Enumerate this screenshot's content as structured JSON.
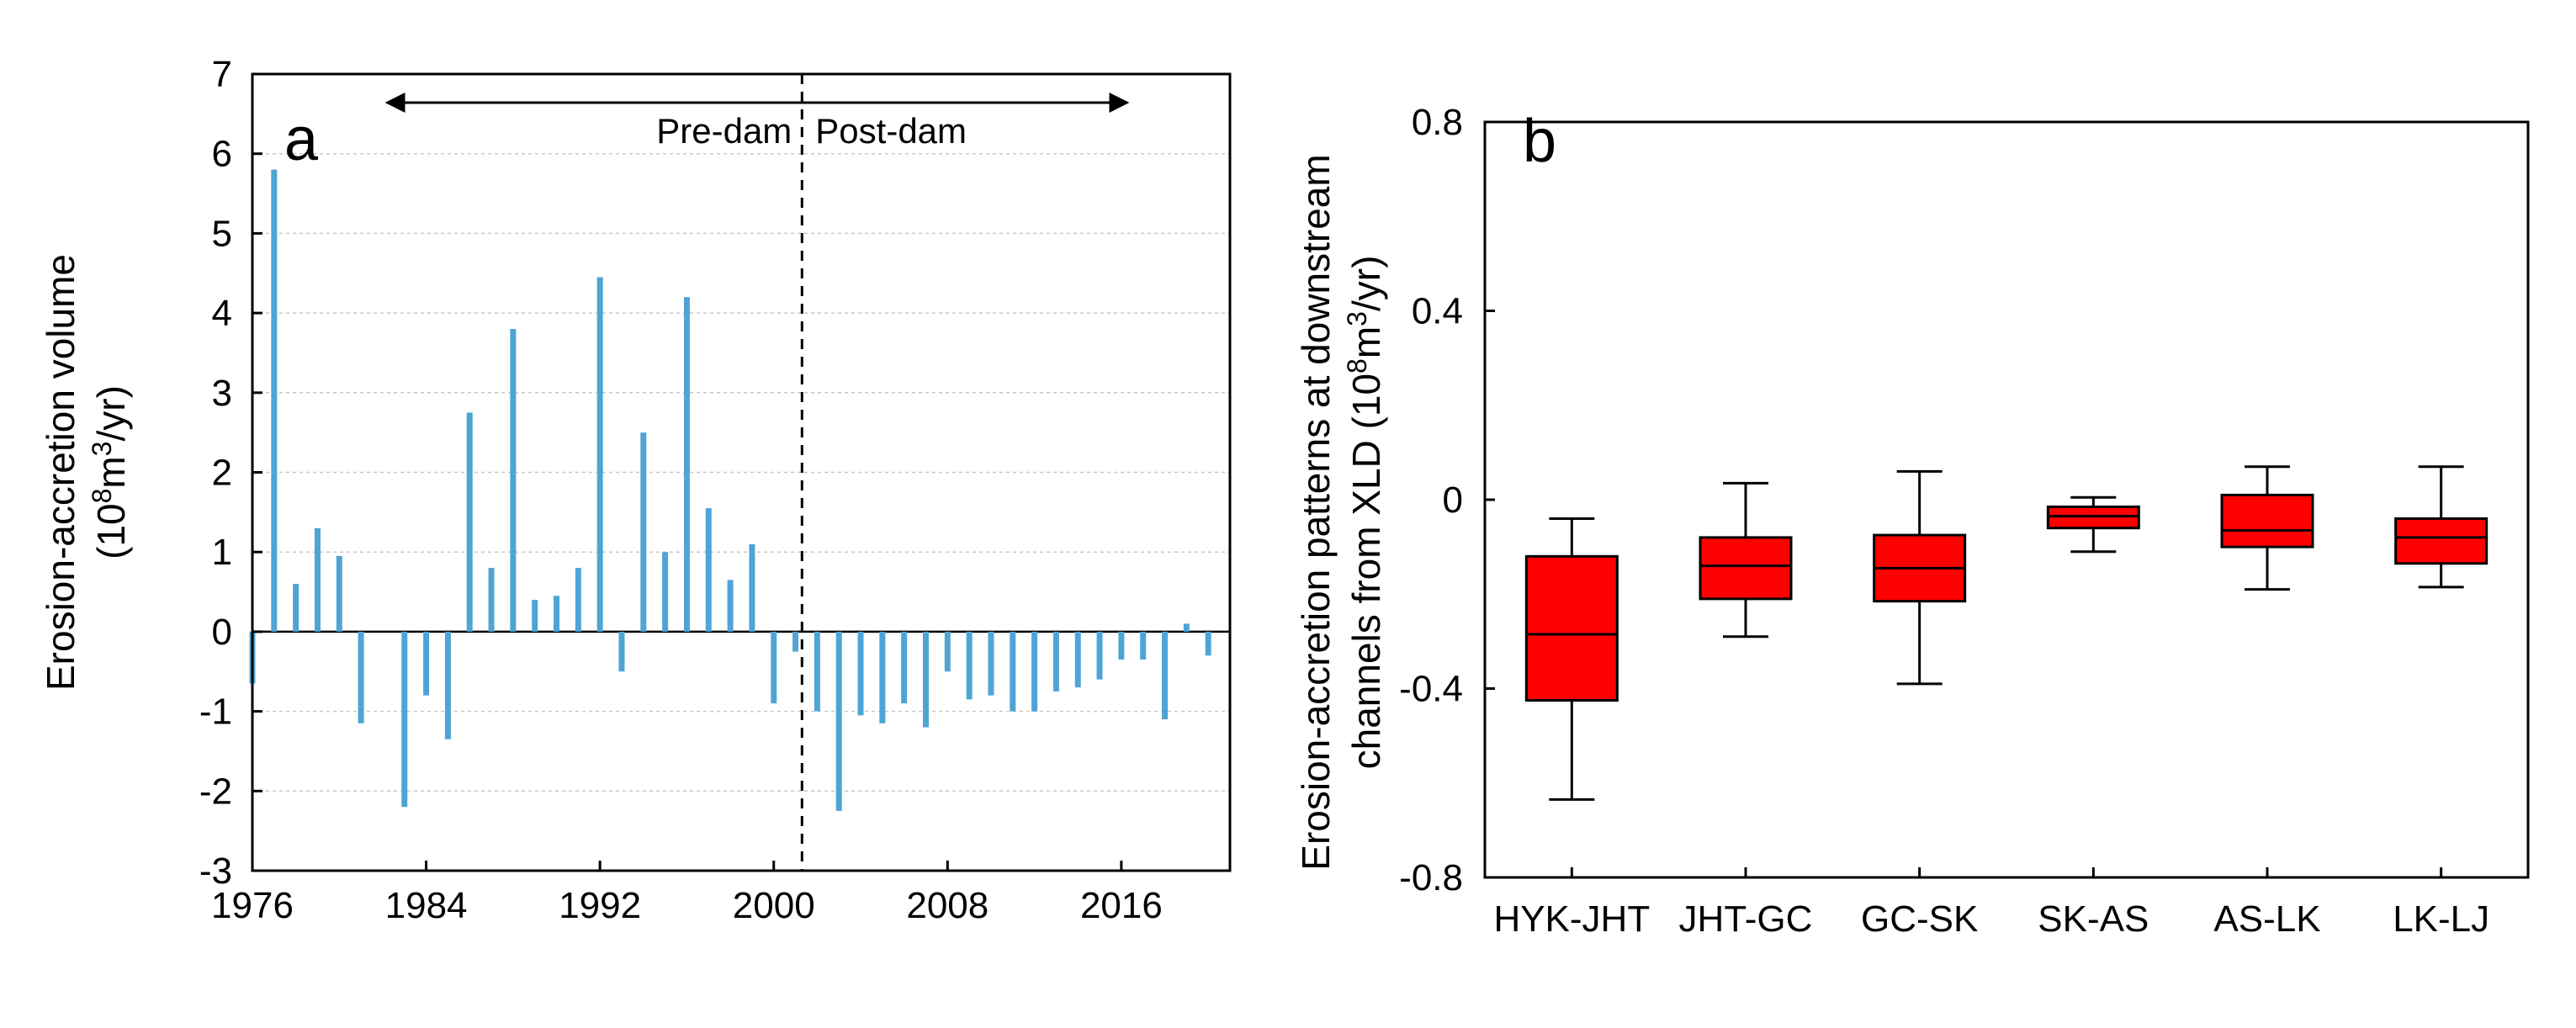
{
  "chart_data": [
    {
      "type": "bar",
      "panel_label": "a",
      "ylabel_line1": "Erosion-accretion volume",
      "ylabel_line2_pre": "(10",
      "ylabel_line2_sup1": "8",
      "ylabel_line2_mid": "m",
      "ylabel_line2_sup2": "3",
      "ylabel_line2_post": "/yr)",
      "ylim": [
        -3,
        7
      ],
      "yticks": [
        "7",
        "6",
        "5",
        "4",
        "3",
        "2",
        "1",
        "0",
        "-1",
        "-2",
        "-3"
      ],
      "ytick_values": [
        7,
        6,
        5,
        4,
        3,
        2,
        1,
        0,
        -1,
        -2,
        -3
      ],
      "xlim": [
        1976,
        2021
      ],
      "xticks": [
        "1976",
        "1984",
        "1992",
        "2000",
        "2008",
        "2016"
      ],
      "xtick_values": [
        1976,
        1984,
        1992,
        2000,
        2008,
        2016
      ],
      "divider_year": 2001.3,
      "pre_label": "Pre-dam",
      "post_label": "Post-dam",
      "bar_color": "#4fa4d6",
      "grid": true,
      "x": [
        1976,
        1977,
        1978,
        1979,
        1980,
        1981,
        1982,
        1983,
        1984,
        1985,
        1986,
        1987,
        1988,
        1989,
        1990,
        1991,
        1992,
        1993,
        1994,
        1995,
        1996,
        1997,
        1998,
        1999,
        2000,
        2001,
        2002,
        2003,
        2004,
        2005,
        2006,
        2007,
        2008,
        2009,
        2010,
        2011,
        2012,
        2013,
        2014,
        2015,
        2016,
        2017,
        2018,
        2019,
        2020,
        2021
      ],
      "values": [
        -0.65,
        5.8,
        0.6,
        1.3,
        0.95,
        -1.15,
        0,
        -2.2,
        -0.8,
        -1.35,
        2.75,
        0.8,
        3.8,
        0.4,
        0.45,
        0.8,
        4.45,
        -0.5,
        2.5,
        1.0,
        4.2,
        1.55,
        0.65,
        1.1,
        -0.9,
        -0.25,
        -1.0,
        -2.25,
        -1.05,
        -1.15,
        -0.9,
        -1.2,
        -0.5,
        -0.85,
        -0.8,
        -1.0,
        -1.0,
        -0.75,
        -0.7,
        -0.6,
        -0.35,
        -0.35,
        -1.1,
        0.1,
        -0.3,
        0
      ]
    },
    {
      "type": "box",
      "panel_label": "b",
      "ylabel_line1": "Erosion-accretion patterns at downstream",
      "ylabel_line2_pre": "channels from XLD (10",
      "ylabel_line2_sup1": "8",
      "ylabel_line2_mid": "m",
      "ylabel_line2_sup2": "3",
      "ylabel_line2_post": "/yr)",
      "ylim": [
        -0.8,
        0.8
      ],
      "yticks": [
        "0.8",
        "0.4",
        "0",
        "-0.4",
        "-0.8"
      ],
      "ytick_values": [
        0.8,
        0.4,
        0,
        -0.4,
        -0.8
      ],
      "box_color": "#ff0000",
      "categories": [
        "HYK-JHT",
        "JHT-GC",
        "GC-SK",
        "SK-AS",
        "AS-LK",
        "LK-LJ"
      ],
      "boxes": [
        {
          "min": -0.635,
          "q1": -0.425,
          "median": -0.285,
          "q3": -0.12,
          "max": -0.04
        },
        {
          "min": -0.29,
          "q1": -0.21,
          "median": -0.14,
          "q3": -0.08,
          "max": 0.035
        },
        {
          "min": -0.39,
          "q1": -0.215,
          "median": -0.145,
          "q3": -0.075,
          "max": 0.06
        },
        {
          "min": -0.11,
          "q1": -0.06,
          "median": -0.035,
          "q3": -0.015,
          "max": 0.005
        },
        {
          "min": -0.19,
          "q1": -0.1,
          "median": -0.065,
          "q3": 0.01,
          "max": 0.07
        },
        {
          "min": -0.185,
          "q1": -0.135,
          "median": -0.08,
          "q3": -0.04,
          "max": 0.07
        }
      ]
    }
  ]
}
